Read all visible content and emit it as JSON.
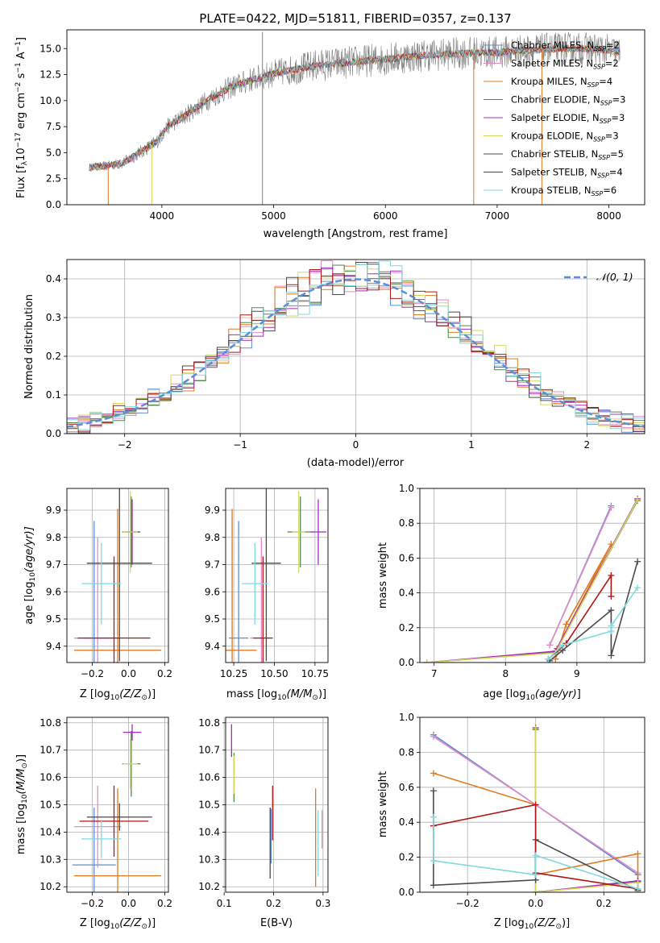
{
  "figure_title": "PLATE=0422, MJD=51811, FIBERID=0357, z=0.137",
  "models": [
    {
      "key": "chab_miles",
      "name": "Chabrier MILES, N$_{SSP}$=2",
      "label": "Chabrier MILES, N",
      "sub": "SSP",
      "tail": "=2",
      "color": "#5b8dd9"
    },
    {
      "key": "salp_miles",
      "name": "Salpeter MILES, N$_{SSP}$=2",
      "label": "Salpeter MILES, N",
      "sub": "SSP",
      "tail": "=2",
      "color": "#e78ac3"
    },
    {
      "key": "krou_miles",
      "name": "Kroupa MILES, N$_{SSP}$=4",
      "label": "Kroupa MILES, N",
      "sub": "SSP",
      "tail": "=4",
      "color": "#e07b1f"
    },
    {
      "key": "chab_elodie",
      "name": "Chabrier ELODIE, N$_{SSP}$=3",
      "label": "Chabrier ELODIE, N",
      "sub": "SSP",
      "tail": "=3",
      "color": "#4e8a4e"
    },
    {
      "key": "salp_elodie",
      "name": "Salpeter ELODIE, N$_{SSP}$=3",
      "label": "Salpeter ELODIE, N",
      "sub": "SSP",
      "tail": "=3",
      "color": "#a12cc0"
    },
    {
      "key": "krou_elodie",
      "name": "Kroupa ELODIE, N$_{SSP}$=3",
      "label": "Kroupa ELODIE, N",
      "sub": "SSP",
      "tail": "=3",
      "color": "#d4d85a"
    },
    {
      "key": "chab_stelib",
      "name": "Chabrier STELIB, N$_{SSP}$=5",
      "label": "Chabrier STELIB, N",
      "sub": "SSP",
      "tail": "=5",
      "color": "#4a4a4a"
    },
    {
      "key": "salp_stelib",
      "name": "Salpeter STELIB, N$_{SSP}$=4",
      "label": "Salpeter STELIB, N",
      "sub": "SSP",
      "tail": "=4",
      "color": "#b01515"
    },
    {
      "key": "krou_stelib",
      "name": "Kroupa STELIB, N$_{SSP}$=6",
      "label": "Kroupa STELIB, N",
      "sub": "SSP",
      "tail": "=6",
      "color": "#7fd9df"
    }
  ],
  "chart_data": [
    {
      "id": "spectrum",
      "type": "line",
      "xlabel": "wavelength [Angstrom, rest frame]",
      "ylabel": "Flux [f_λ 10^-17 erg cm^-2 s^-1 A^-1]",
      "xlim": [
        3150,
        8320
      ],
      "ylim": [
        0,
        16.8
      ],
      "xticks": [
        4000,
        5000,
        6000,
        7000,
        8000
      ],
      "yticks": [
        0.0,
        2.5,
        5.0,
        7.5,
        10.0,
        12.5,
        15.0
      ],
      "grid": false,
      "legend": "right",
      "observed_series": {
        "name": "data",
        "color": "#808080"
      },
      "continuum": {
        "x": [
          3350,
          3500,
          3650,
          3800,
          3950,
          4050,
          4200,
          4400,
          4600,
          4800,
          5000,
          5200,
          5400,
          5600,
          5800,
          6000,
          6200,
          6400,
          6600,
          6800,
          7000,
          7200,
          7400,
          7600,
          7800,
          8000,
          8100
        ],
        "y": [
          3.6,
          3.7,
          4.0,
          5.0,
          6.0,
          7.5,
          8.5,
          10.0,
          11.2,
          12.0,
          12.6,
          13.0,
          13.4,
          13.6,
          13.8,
          14.0,
          14.2,
          14.4,
          14.5,
          14.6,
          14.6,
          14.8,
          14.9,
          15.0,
          15.0,
          14.8,
          14.6
        ]
      },
      "spikes": [
        {
          "x": 3520,
          "y": 0
        },
        {
          "x": 3910,
          "y": 0
        },
        {
          "x": 4900,
          "y": 0
        },
        {
          "x": 4900,
          "y": 16.6
        },
        {
          "x": 6790,
          "y": 0
        },
        {
          "x": 7400,
          "y": 0
        }
      ]
    },
    {
      "id": "residuals",
      "type": "line",
      "xlabel": "(data-model)/error",
      "ylabel": "Normed distribution",
      "xlim": [
        -2.5,
        2.5
      ],
      "ylim": [
        0,
        0.45
      ],
      "xticks": [
        -2,
        -1,
        0,
        1,
        2
      ],
      "yticks": [
        0.0,
        0.1,
        0.2,
        0.3,
        0.4
      ],
      "grid": true,
      "legend": "top-right",
      "reference": {
        "name": "𝒩(0, 1)",
        "mean": 0,
        "sigma": 1,
        "color": "#5b8dd9"
      }
    },
    {
      "id": "z_age",
      "type": "scatter",
      "xlabel": "Z [log10(Z/Z⊙)]",
      "ylabel": "age [log10(age/yr)]",
      "xlim": [
        -0.34,
        0.22
      ],
      "ylim": [
        9.34,
        9.98
      ],
      "xticks": [
        -0.2,
        0.0,
        0.2
      ],
      "yticks": [
        9.4,
        9.5,
        9.6,
        9.7,
        9.8,
        9.9
      ],
      "grid": true,
      "points": [
        {
          "model": "chab_miles",
          "x": -0.19,
          "y": 9.43,
          "xerr": 0.11,
          "yerr": 0.43
        },
        {
          "model": "salp_miles",
          "x": -0.17,
          "y": 9.43,
          "xerr": 0.13,
          "yerr": 0.37
        },
        {
          "model": "krou_miles",
          "x": -0.06,
          "y": 9.385,
          "xerr": 0.24,
          "yerr": 0.52
        },
        {
          "model": "chab_elodie",
          "x": 0.015,
          "y": 9.82,
          "xerr": 0.05,
          "yerr": 0.13
        },
        {
          "model": "salp_elodie",
          "x": 0.02,
          "y": 9.82,
          "xerr": 0.04,
          "yerr": 0.12
        },
        {
          "model": "krou_elodie",
          "x": 0.01,
          "y": 9.82,
          "xerr": 0.04,
          "yerr": 0.15
        },
        {
          "model": "chab_stelib",
          "x": -0.05,
          "y": 9.705,
          "xerr": 0.18,
          "yerr": 0.36
        },
        {
          "model": "salp_stelib",
          "x": -0.08,
          "y": 9.43,
          "xerr": 0.2,
          "yerr": 0.3
        },
        {
          "model": "krou_stelib",
          "x": -0.15,
          "y": 9.63,
          "xerr": 0.11,
          "yerr": 0.15
        }
      ]
    },
    {
      "id": "mass_age",
      "type": "scatter",
      "xlabel": "mass [log10(M/M⊙)]",
      "ylabel": "",
      "xlim": [
        10.2,
        10.83
      ],
      "ylim": [
        9.34,
        9.98
      ],
      "xticks": [
        10.25,
        10.5,
        10.75
      ],
      "yticks": [
        9.4,
        9.5,
        9.6,
        9.7,
        9.8,
        9.9
      ],
      "grid": true,
      "points": [
        {
          "model": "chab_miles",
          "x": 10.28,
          "y": 9.43,
          "xerr": 0.06,
          "yerr": 0.43
        },
        {
          "model": "salp_miles",
          "x": 10.42,
          "y": 9.43,
          "xerr": 0.07,
          "yerr": 0.37
        },
        {
          "model": "krou_miles",
          "x": 10.24,
          "y": 9.385,
          "xerr": 0.15,
          "yerr": 0.52
        },
        {
          "model": "chab_elodie",
          "x": 10.66,
          "y": 9.82,
          "xerr": 0.08,
          "yerr": 0.13
        },
        {
          "model": "salp_elodie",
          "x": 10.77,
          "y": 9.82,
          "xerr": 0.05,
          "yerr": 0.12
        },
        {
          "model": "krou_elodie",
          "x": 10.65,
          "y": 9.82,
          "xerr": 0.04,
          "yerr": 0.15
        },
        {
          "model": "chab_stelib",
          "x": 10.45,
          "y": 9.705,
          "xerr": 0.09,
          "yerr": 0.36
        },
        {
          "model": "salp_stelib",
          "x": 10.43,
          "y": 9.43,
          "xerr": 0.06,
          "yerr": 0.3
        },
        {
          "model": "krou_stelib",
          "x": 10.38,
          "y": 9.63,
          "xerr": 0.08,
          "yerr": 0.15
        }
      ]
    },
    {
      "id": "age_weight",
      "type": "line",
      "xlabel": "age [log10(age/yr)]",
      "ylabel": "mass weight",
      "xlim": [
        6.8,
        9.95
      ],
      "ylim": [
        0,
        1.0
      ],
      "xticks": [
        7,
        8,
        9
      ],
      "yticks": [
        0.0,
        0.2,
        0.4,
        0.6,
        0.8,
        1.0
      ],
      "grid": true,
      "series": [
        {
          "model": "chab_miles",
          "x": [
            8.62,
            9.48
          ],
          "y": [
            0.1,
            0.9
          ]
        },
        {
          "model": "salp_miles",
          "x": [
            8.62,
            9.48
          ],
          "y": [
            0.1,
            0.89
          ]
        },
        {
          "model": "krou_miles",
          "x": [
            8.7,
            8.85,
            9.48,
            8.72
          ],
          "y": [
            0.02,
            0.22,
            0.68,
            0.08
          ]
        },
        {
          "model": "chab_elodie",
          "x": [
            6.9,
            8.7,
            9.85
          ],
          "y": [
            0.0,
            0.06,
            0.93
          ]
        },
        {
          "model": "salp_elodie",
          "x": [
            6.9,
            8.7,
            9.85
          ],
          "y": [
            0.0,
            0.065,
            0.94
          ]
        },
        {
          "model": "krou_elodie",
          "x": [
            6.9,
            8.7,
            9.85
          ],
          "y": [
            0.0,
            0.055,
            0.935
          ]
        },
        {
          "model": "chab_stelib",
          "x": [
            8.62,
            8.8,
            9.48,
            9.48,
            9.85
          ],
          "y": [
            0.01,
            0.07,
            0.3,
            0.04,
            0.58
          ]
        },
        {
          "model": "salp_stelib",
          "x": [
            8.6,
            8.85,
            9.48,
            9.48
          ],
          "y": [
            0.02,
            0.11,
            0.5,
            0.38
          ]
        },
        {
          "model": "krou_stelib",
          "x": [
            8.6,
            8.8,
            9.48,
            9.48,
            9.85
          ],
          "y": [
            0.02,
            0.1,
            0.18,
            0.21,
            0.43
          ]
        }
      ]
    },
    {
      "id": "z_mass",
      "type": "scatter",
      "xlabel": "Z [log10(Z/Z⊙)]",
      "ylabel": "mass [log10(M/M⊙)]",
      "xlim": [
        -0.34,
        0.22
      ],
      "ylim": [
        10.18,
        10.82
      ],
      "xticks": [
        -0.2,
        0.0,
        0.2
      ],
      "yticks": [
        10.2,
        10.3,
        10.4,
        10.5,
        10.6,
        10.7,
        10.8
      ],
      "grid": true,
      "points": [
        {
          "model": "chab_miles",
          "x": -0.19,
          "y": 10.28,
          "xerr": 0.12,
          "yerr": 0.21
        },
        {
          "model": "salp_miles",
          "x": -0.17,
          "y": 10.42,
          "xerr": 0.13,
          "yerr": 0.15
        },
        {
          "model": "krou_miles",
          "x": -0.06,
          "y": 10.24,
          "xerr": 0.24,
          "yerr": 0.32
        },
        {
          "model": "chab_elodie",
          "x": 0.015,
          "y": 10.65,
          "xerr": 0.05,
          "yerr": 0.12
        },
        {
          "model": "salp_elodie",
          "x": 0.02,
          "y": 10.765,
          "xerr": 0.05,
          "yerr": 0.03
        },
        {
          "model": "krou_elodie",
          "x": 0.01,
          "y": 10.65,
          "xerr": 0.04,
          "yerr": 0.09
        },
        {
          "model": "chab_stelib",
          "x": -0.05,
          "y": 10.455,
          "xerr": 0.18,
          "yerr": 0.05
        },
        {
          "model": "salp_stelib",
          "x": -0.08,
          "y": 10.44,
          "xerr": 0.19,
          "yerr": 0.13
        },
        {
          "model": "krou_stelib",
          "x": -0.15,
          "y": 10.375,
          "xerr": 0.11,
          "yerr": 0.07
        }
      ]
    },
    {
      "id": "ebv_mass",
      "type": "scatter",
      "xlabel": "E(B-V)",
      "ylabel": "",
      "xlim": [
        0.103,
        0.31
      ],
      "ylim": [
        10.18,
        10.82
      ],
      "xticks": [
        0.1,
        0.2,
        0.3
      ],
      "yticks": [
        10.2,
        10.3,
        10.4,
        10.5,
        10.6,
        10.7,
        10.8
      ],
      "grid": true,
      "points": [
        {
          "model": "chab_miles",
          "x": 0.195,
          "y": 10.385,
          "xerr": 0,
          "yerr": 0.1
        },
        {
          "model": "salp_miles",
          "x": 0.298,
          "y": 10.41,
          "xerr": 0,
          "yerr": 0.07
        },
        {
          "model": "krou_miles",
          "x": 0.285,
          "y": 10.38,
          "xerr": 0,
          "yerr": 0.18
        },
        {
          "model": "chab_elodie",
          "x": 0.12,
          "y": 10.6,
          "xerr": 0,
          "yerr": 0.09
        },
        {
          "model": "salp_elodie",
          "x": 0.115,
          "y": 10.735,
          "xerr": 0,
          "yerr": 0.06
        },
        {
          "model": "krou_elodie",
          "x": 0.12,
          "y": 10.61,
          "xerr": 0,
          "yerr": 0.07
        },
        {
          "model": "chab_stelib",
          "x": 0.193,
          "y": 10.36,
          "xerr": 0,
          "yerr": 0.13
        },
        {
          "model": "salp_stelib",
          "x": 0.198,
          "y": 10.47,
          "xerr": 0,
          "yerr": 0.1
        },
        {
          "model": "krou_stelib",
          "x": 0.29,
          "y": 10.36,
          "xerr": 0,
          "yerr": 0.12
        }
      ]
    },
    {
      "id": "z_weight",
      "type": "line",
      "xlabel": "Z [log10(Z/Z⊙)]",
      "ylabel": "mass weight",
      "xlim": [
        -0.34,
        0.32
      ],
      "ylim": [
        0,
        1.0
      ],
      "xticks": [
        -0.2,
        0.0,
        0.2
      ],
      "yticks": [
        0.0,
        0.2,
        0.4,
        0.6,
        0.8,
        1.0
      ],
      "grid": true,
      "series": [
        {
          "model": "chab_miles",
          "x": [
            -0.3,
            0.3
          ],
          "y": [
            0.9,
            0.1
          ]
        },
        {
          "model": "salp_miles",
          "x": [
            -0.3,
            0.3
          ],
          "y": [
            0.89,
            0.11
          ]
        },
        {
          "model": "krou_miles",
          "x": [
            -0.3,
            0.0,
            0.0,
            0.3,
            0.3
          ],
          "y": [
            0.68,
            0.5,
            0.1,
            0.22,
            0.0
          ]
        },
        {
          "model": "chab_elodie",
          "x": [
            0.0,
            0.0,
            0.3
          ],
          "y": [
            0.93,
            0.0,
            0.06
          ]
        },
        {
          "model": "salp_elodie",
          "x": [
            0.0,
            0.0,
            0.3
          ],
          "y": [
            0.94,
            0.0,
            0.065
          ]
        },
        {
          "model": "krou_elodie",
          "x": [
            0.0,
            0.0,
            0.3
          ],
          "y": [
            0.935,
            0.0,
            0.055
          ]
        },
        {
          "model": "chab_stelib",
          "x": [
            -0.3,
            -0.3,
            0.0,
            0.0,
            0.3
          ],
          "y": [
            0.58,
            0.04,
            0.07,
            0.3,
            0.01
          ]
        },
        {
          "model": "salp_stelib",
          "x": [
            -0.3,
            0.0,
            0.0,
            0.3
          ],
          "y": [
            0.38,
            0.5,
            0.11,
            0.02
          ]
        },
        {
          "model": "krou_stelib",
          "x": [
            -0.3,
            -0.3,
            0.0,
            0.0,
            0.3
          ],
          "y": [
            0.43,
            0.18,
            0.1,
            0.21,
            0.02
          ]
        }
      ]
    }
  ]
}
